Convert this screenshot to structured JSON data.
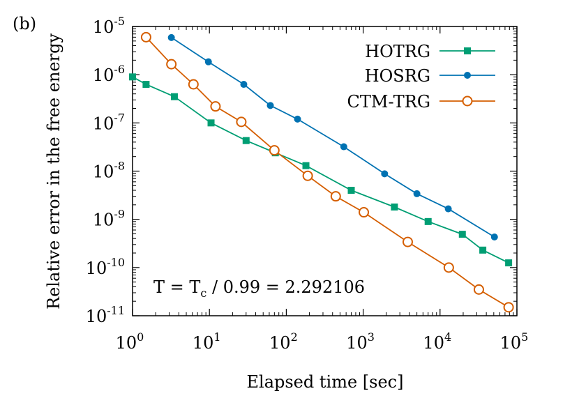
{
  "panel_label": "(b)",
  "chart_data": {
    "type": "line",
    "x_scale": "log",
    "y_scale": "log",
    "xlabel": "Elapsed time [sec]",
    "ylabel": "Relative error in the free energy",
    "xlim": [
      1,
      100000
    ],
    "ylim": [
      1e-11,
      1e-05
    ],
    "x_ticks": [
      {
        "base": "10",
        "exp": "0",
        "value": 1
      },
      {
        "base": "10",
        "exp": "1",
        "value": 10
      },
      {
        "base": "10",
        "exp": "2",
        "value": 100
      },
      {
        "base": "10",
        "exp": "3",
        "value": 1000
      },
      {
        "base": "10",
        "exp": "4",
        "value": 10000
      },
      {
        "base": "10",
        "exp": "5",
        "value": 100000
      }
    ],
    "y_ticks": [
      {
        "base": "10",
        "exp": "-11",
        "value": 1e-11
      },
      {
        "base": "10",
        "exp": "-10",
        "value": 1e-10
      },
      {
        "base": "10",
        "exp": "-9",
        "value": 1e-09
      },
      {
        "base": "10",
        "exp": "-8",
        "value": 1e-08
      },
      {
        "base": "10",
        "exp": "-7",
        "value": 1e-07
      },
      {
        "base": "10",
        "exp": "-6",
        "value": 1e-06
      },
      {
        "base": "10",
        "exp": "-5",
        "value": 1e-05
      }
    ],
    "annotation": {
      "prefix": "T = T",
      "sub": "c",
      "suffix": " / 0.99 = 2.292106"
    },
    "legend_position": "top-right",
    "grid": false,
    "series": [
      {
        "name": "HOTRG",
        "color": "#009e73",
        "marker": "square-filled",
        "x": [
          1,
          1.5,
          3.5,
          10.5,
          30,
          72,
          180,
          700,
          2550,
          7000,
          19500,
          36000,
          78000
        ],
        "y": [
          9e-07,
          6.3e-07,
          3.5e-07,
          1e-07,
          4.3e-08,
          2.4e-08,
          1.3e-08,
          4e-09,
          1.8e-09,
          9e-10,
          4.9e-10,
          2.3e-10,
          1.25e-10
        ]
      },
      {
        "name": "HOSRG",
        "color": "#0072b2",
        "marker": "circle-filled",
        "x": [
          3.2,
          9.7,
          28,
          62,
          140,
          560,
          1900,
          5000,
          12800,
          51000
        ],
        "y": [
          5.9e-06,
          1.85e-06,
          6.3e-07,
          2.3e-07,
          1.2e-07,
          3.2e-08,
          8.8e-09,
          3.4e-09,
          1.65e-09,
          4.3e-10
        ]
      },
      {
        "name": "CTM-TRG",
        "color": "#d55e00",
        "marker": "circle-open",
        "x": [
          1.5,
          3.2,
          6.2,
          12,
          26,
          70,
          190,
          440,
          1020,
          3800,
          13000,
          32000,
          78000
        ],
        "y": [
          6e-06,
          1.65e-06,
          6.3e-07,
          2.2e-07,
          1.05e-07,
          2.7e-08,
          8e-09,
          3e-09,
          1.4e-09,
          3.4e-10,
          1e-10,
          3.5e-11,
          1.5e-11
        ]
      }
    ]
  }
}
